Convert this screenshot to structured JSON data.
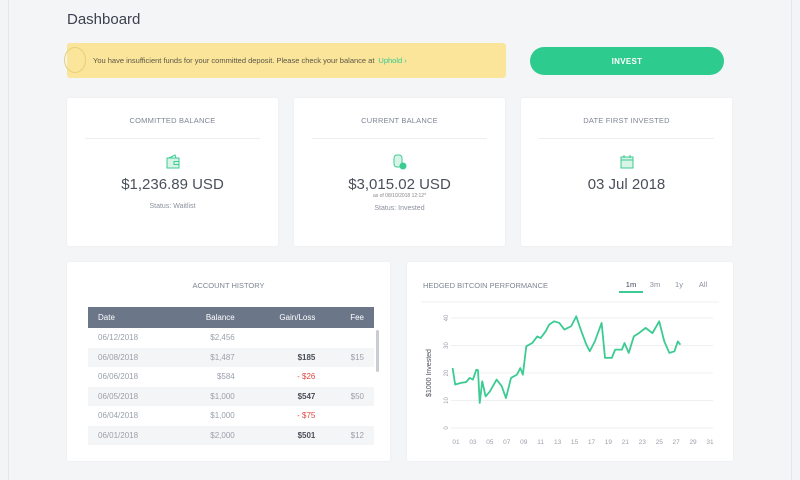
{
  "page": {
    "title": "Dashboard"
  },
  "banner": {
    "message": "You have insufficient funds for your committed deposit. Please check your balance at",
    "link": "Uphold ›"
  },
  "invest_label": "INVEST",
  "cards": [
    {
      "label": "COMMITTED BALANCE",
      "value": "$1,236.89 USD",
      "sub": "",
      "status": "Status: Waitlist",
      "icon": "wallet-icon"
    },
    {
      "label": "CURRENT BALANCE",
      "value": "$3,015.02 USD",
      "sub": "as of 08/10/2018 12:12*",
      "status": "Status: Invested",
      "icon": "coins-icon"
    },
    {
      "label": "DATE FIRST INVESTED",
      "value": "03 Jul 2018",
      "sub": "",
      "status": "",
      "icon": "calendar-icon"
    }
  ],
  "history": {
    "title": "ACCOUNT HISTORY",
    "columns": [
      "Date",
      "Balance",
      "Gain/Loss",
      "Fee"
    ],
    "rows": [
      [
        "06/12/2018",
        "$2,456",
        "",
        ""
      ],
      [
        "06/08/2018",
        "$1,487",
        "$185",
        "$15"
      ],
      [
        "06/06/2018",
        "$584",
        "- $26",
        ""
      ],
      [
        "06/05/2018",
        "$1,000",
        "$547",
        "$50"
      ],
      [
        "06/04/2018",
        "$1,000",
        "- $75",
        ""
      ],
      [
        "06/01/2018",
        "$2,000",
        "$501",
        "$12"
      ]
    ]
  },
  "accent": "#2ecb8e",
  "chart_data": {
    "type": "line",
    "title": "HEDGED BITCOIN PERFORMANCE",
    "ylabel": "$1000 Invested",
    "xlabel": "",
    "tabs": [
      "1m",
      "3m",
      "1y",
      "All"
    ],
    "active_tab": "1m",
    "xlim": [
      1,
      31
    ],
    "ylim": [
      0,
      40
    ],
    "grid": true,
    "xticks": [
      "01",
      "03",
      "05",
      "07",
      "09",
      "11",
      "13",
      "15",
      "17",
      "19",
      "21",
      "23",
      "25",
      "27",
      "29",
      "31"
    ],
    "yticks": [
      0,
      10,
      20,
      30,
      40
    ],
    "series": [
      {
        "color": "#3ccb92",
        "points": [
          [
            0.6,
            21.8
          ],
          [
            0.9,
            15.8
          ],
          [
            1.6,
            16.4
          ],
          [
            2.2,
            16.7
          ],
          [
            2.6,
            18.2
          ],
          [
            3,
            17.6
          ],
          [
            3.4,
            21.2
          ],
          [
            3.6,
            21
          ],
          [
            3.8,
            9.1
          ],
          [
            4.1,
            17
          ],
          [
            4.5,
            11.5
          ],
          [
            5,
            13.3
          ],
          [
            5.8,
            17.6
          ],
          [
            6.4,
            15.2
          ],
          [
            6.9,
            10.9
          ],
          [
            7.5,
            18.2
          ],
          [
            8.2,
            19.4
          ],
          [
            8.6,
            21.8
          ],
          [
            8.9,
            19.4
          ],
          [
            9.3,
            29.7
          ],
          [
            10,
            30.9
          ],
          [
            10.6,
            33.3
          ],
          [
            11,
            32.7
          ],
          [
            11.6,
            35.2
          ],
          [
            12,
            37.6
          ],
          [
            12.6,
            38.8
          ],
          [
            13.2,
            38.2
          ],
          [
            13.8,
            35.8
          ],
          [
            14.6,
            37
          ],
          [
            15.2,
            40.6
          ],
          [
            15.8,
            35.2
          ],
          [
            16.4,
            30.3
          ],
          [
            16.8,
            27.9
          ],
          [
            17.4,
            31.5
          ],
          [
            18.2,
            38.2
          ],
          [
            18.6,
            25.5
          ],
          [
            19.4,
            25.5
          ],
          [
            19.8,
            28.5
          ],
          [
            20.6,
            28.5
          ],
          [
            20.9,
            30.9
          ],
          [
            21.4,
            27.3
          ],
          [
            22,
            33.3
          ],
          [
            22.6,
            34.5
          ],
          [
            23.4,
            36.4
          ],
          [
            24.2,
            34.5
          ],
          [
            25,
            38.8
          ],
          [
            25.6,
            31.5
          ],
          [
            26.2,
            27.3
          ],
          [
            26.8,
            27.9
          ],
          [
            27.2,
            31.5
          ],
          [
            27.5,
            30.3
          ]
        ]
      }
    ]
  }
}
